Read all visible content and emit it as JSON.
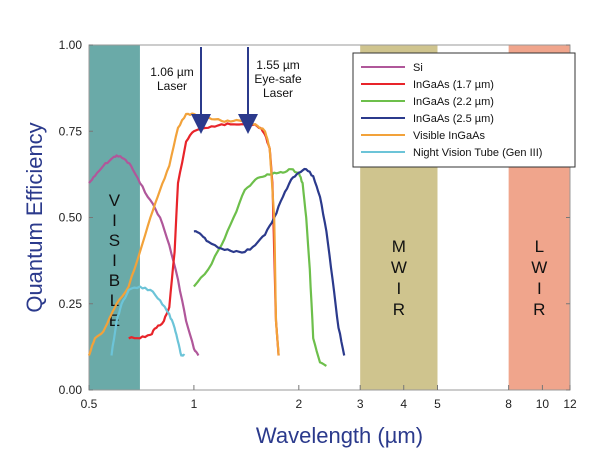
{
  "chart_data": {
    "type": "line",
    "xlabel": "Wavelength (µm)",
    "ylabel": "Quantum Efficiency",
    "x_scale": "log",
    "xlim": [
      0.5,
      12
    ],
    "ylim": [
      0,
      1
    ],
    "x_ticks": [
      {
        "value": 0.5,
        "label": "0.5"
      },
      {
        "value": 1,
        "label": "1"
      },
      {
        "value": 2,
        "label": "2"
      },
      {
        "value": 3,
        "label": "3"
      },
      {
        "value": 4,
        "label": "4"
      },
      {
        "value": 5,
        "label": "5"
      },
      {
        "value": 8,
        "label": "8"
      },
      {
        "value": 10,
        "label": "10"
      },
      {
        "value": 12,
        "label": "12"
      }
    ],
    "y_ticks": [
      {
        "value": 0,
        "label": "0.00"
      },
      {
        "value": 0.25,
        "label": "0.25"
      },
      {
        "value": 0.5,
        "label": "0.50"
      },
      {
        "value": 0.75,
        "label": "0.75"
      },
      {
        "value": 1,
        "label": "1.00"
      }
    ],
    "bands": [
      {
        "name": "visible",
        "letters": [
          "V",
          "I",
          "S",
          "I",
          "B",
          "L",
          "E"
        ],
        "x0": 0.5,
        "x1": 0.7,
        "color": "#6aaaa8"
      },
      {
        "name": "mwir",
        "letters": [
          "M",
          "W",
          "I",
          "R"
        ],
        "x0": 3,
        "x1": 5,
        "color": "#cfc48e"
      },
      {
        "name": "lwir",
        "letters": [
          "L",
          "W",
          "I",
          "R"
        ],
        "x0": 8,
        "x1": 12,
        "color": "#f0a58c"
      }
    ],
    "annotations": [
      {
        "lines": [
          "1.06 µm",
          "Laser"
        ],
        "x": 1.06
      },
      {
        "lines": [
          "1.55 µm",
          "Eye-safe",
          "Laser"
        ],
        "x": 1.55
      }
    ],
    "series": [
      {
        "name": "Si",
        "color": "#b0579a",
        "x": [
          0.5,
          0.52,
          0.55,
          0.58,
          0.6,
          0.63,
          0.66,
          0.7,
          0.75,
          0.8,
          0.85,
          0.9,
          0.95,
          1.0,
          1.03
        ],
        "y": [
          0.6,
          0.62,
          0.65,
          0.67,
          0.68,
          0.67,
          0.65,
          0.6,
          0.55,
          0.5,
          0.42,
          0.32,
          0.2,
          0.12,
          0.1
        ]
      },
      {
        "name": "InGaAs (1.7 µm)",
        "color": "#e8242a",
        "x": [
          0.65,
          0.7,
          0.75,
          0.78,
          0.82,
          0.85,
          0.88,
          0.9,
          0.95,
          1.0,
          1.1,
          1.2,
          1.3,
          1.4,
          1.5,
          1.55,
          1.6,
          1.65,
          1.68,
          1.7,
          1.72,
          1.75
        ],
        "y": [
          0.15,
          0.15,
          0.16,
          0.18,
          0.2,
          0.24,
          0.4,
          0.6,
          0.72,
          0.75,
          0.76,
          0.77,
          0.77,
          0.77,
          0.77,
          0.76,
          0.74,
          0.7,
          0.6,
          0.4,
          0.2,
          0.1
        ]
      },
      {
        "name": "InGaAs (2.2 µm)",
        "color": "#6dbf4b",
        "x": [
          1.0,
          1.1,
          1.2,
          1.3,
          1.4,
          1.5,
          1.6,
          1.7,
          1.8,
          1.9,
          2.0,
          2.05,
          2.1,
          2.15,
          2.2,
          2.3,
          2.4
        ],
        "y": [
          0.3,
          0.35,
          0.42,
          0.5,
          0.58,
          0.61,
          0.62,
          0.63,
          0.63,
          0.64,
          0.63,
          0.6,
          0.5,
          0.35,
          0.15,
          0.08,
          0.07
        ]
      },
      {
        "name": "InGaAs (2.5 µm)",
        "color": "#2b3a8c",
        "x": [
          1.0,
          1.05,
          1.1,
          1.2,
          1.3,
          1.4,
          1.5,
          1.6,
          1.7,
          1.8,
          1.9,
          2.0,
          2.1,
          2.2,
          2.3,
          2.4,
          2.5,
          2.6,
          2.7
        ],
        "y": [
          0.46,
          0.45,
          0.43,
          0.41,
          0.4,
          0.4,
          0.42,
          0.45,
          0.5,
          0.56,
          0.61,
          0.63,
          0.64,
          0.62,
          0.56,
          0.46,
          0.32,
          0.18,
          0.1
        ]
      },
      {
        "name": "Visible InGaAs",
        "color": "#f2a23a",
        "x": [
          0.5,
          0.52,
          0.55,
          0.58,
          0.6,
          0.65,
          0.7,
          0.75,
          0.8,
          0.85,
          0.9,
          0.95,
          1.0,
          1.05,
          1.1,
          1.2,
          1.3,
          1.4,
          1.5,
          1.6,
          1.65,
          1.7,
          1.72,
          1.75
        ],
        "y": [
          0.1,
          0.15,
          0.17,
          0.22,
          0.25,
          0.3,
          0.4,
          0.5,
          0.58,
          0.65,
          0.76,
          0.8,
          0.8,
          0.79,
          0.79,
          0.78,
          0.78,
          0.78,
          0.77,
          0.75,
          0.7,
          0.5,
          0.2,
          0.1
        ]
      },
      {
        "name": "Night Vision Tube (Gen III)",
        "color": "#6cc4d8",
        "x": [
          0.58,
          0.6,
          0.62,
          0.65,
          0.7,
          0.75,
          0.8,
          0.85,
          0.88,
          0.9,
          0.92,
          0.94
        ],
        "y": [
          0.1,
          0.2,
          0.25,
          0.29,
          0.3,
          0.29,
          0.26,
          0.22,
          0.18,
          0.14,
          0.1,
          0.1
        ]
      }
    ]
  }
}
